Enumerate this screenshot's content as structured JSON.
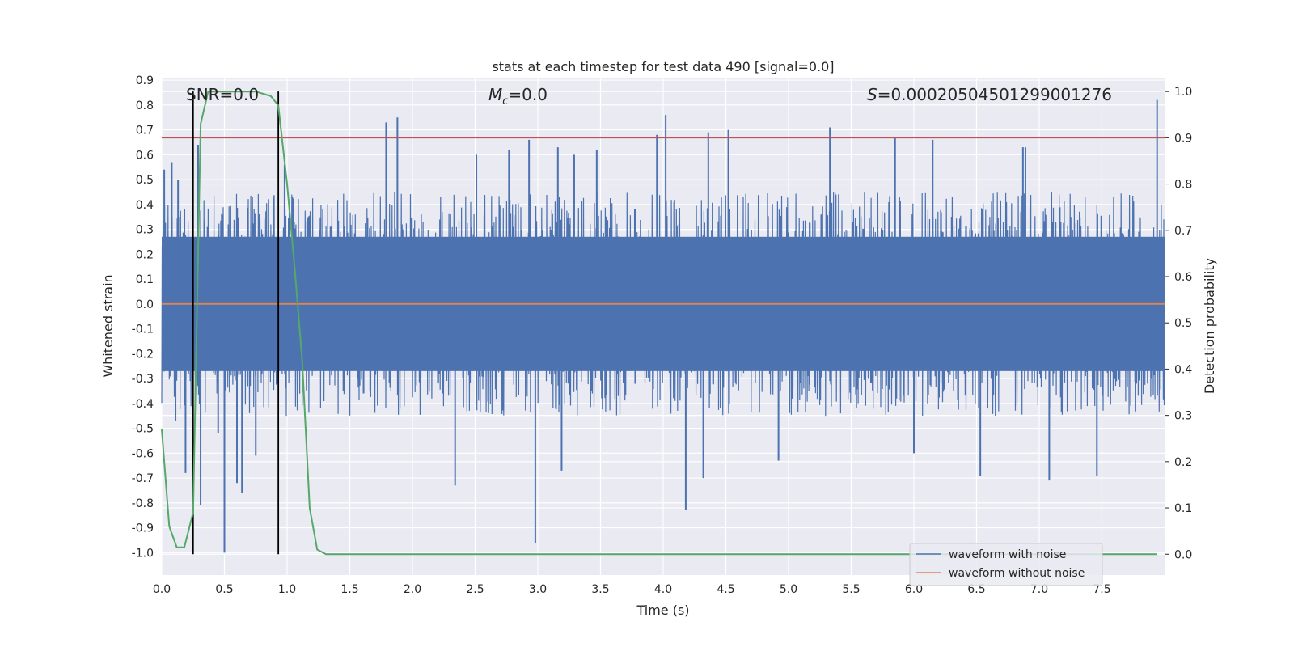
{
  "chart_data": {
    "type": "line",
    "title": "stats at each timestep for test data 490 [signal=0.0]",
    "xlabel": "Time (s)",
    "ylabel": "Whitened strain",
    "ylabel_right": "Detection probability",
    "xlim": [
      0.0,
      8.0
    ],
    "ylim": [
      -1.09,
      0.91
    ],
    "ylim_right": [
      -0.045,
      1.03
    ],
    "x_ticks": [
      "0.0",
      "0.5",
      "1.0",
      "1.5",
      "2.0",
      "2.5",
      "3.0",
      "3.5",
      "4.0",
      "4.5",
      "5.0",
      "5.5",
      "6.0",
      "6.5",
      "7.0",
      "7.5"
    ],
    "y_ticks": [
      "0.9",
      "0.8",
      "0.7",
      "0.6",
      "0.5",
      "0.4",
      "0.3",
      "0.2",
      "0.1",
      "0.0",
      "-0.1",
      "-0.2",
      "-0.3",
      "-0.4",
      "-0.5",
      "-0.6",
      "-0.7",
      "-0.8",
      "-0.9",
      "-1.0"
    ],
    "y_ticks_right": [
      "1.0",
      "0.9",
      "0.8",
      "0.7",
      "0.6",
      "0.5",
      "0.4",
      "0.3",
      "0.2",
      "0.1",
      "0.0"
    ],
    "grid": true,
    "legend_position": "lower-right",
    "annotations": {
      "snr": "SNR=0.0",
      "mc_symbol": "M",
      "mc_sub": "c",
      "mc_value": "=0.0",
      "s_symbol": "S",
      "s_value": "=0.00020504501299001276"
    },
    "threshold_right": 0.9,
    "vlines_x": [
      0.25,
      0.93
    ],
    "series": [
      {
        "name": "waveform with noise",
        "color": "#4c72b0",
        "axis": "left",
        "envelope": {
          "core_lo": -0.27,
          "core_hi": 0.27,
          "typical_lo": -0.45,
          "typical_hi": 0.45
        },
        "peaks": [
          [
            0.02,
            0.54
          ],
          [
            0.08,
            0.57
          ],
          [
            0.11,
            -0.47
          ],
          [
            0.13,
            0.5
          ],
          [
            0.19,
            -0.68
          ],
          [
            0.29,
            0.64
          ],
          [
            0.31,
            -0.81
          ],
          [
            0.45,
            -0.52
          ],
          [
            0.5,
            -1.0
          ],
          [
            0.6,
            -0.72
          ],
          [
            0.64,
            -0.76
          ],
          [
            0.75,
            -0.61
          ],
          [
            0.98,
            0.56
          ],
          [
            1.61,
            -0.36
          ],
          [
            1.79,
            0.73
          ],
          [
            1.88,
            0.75
          ],
          [
            2.34,
            -0.73
          ],
          [
            2.51,
            0.6
          ],
          [
            2.77,
            0.62
          ],
          [
            2.93,
            0.66
          ],
          [
            2.98,
            -0.96
          ],
          [
            3.16,
            0.63
          ],
          [
            3.19,
            -0.67
          ],
          [
            3.29,
            0.6
          ],
          [
            3.47,
            0.62
          ],
          [
            3.95,
            0.68
          ],
          [
            4.02,
            0.76
          ],
          [
            4.18,
            -0.83
          ],
          [
            4.32,
            -0.7
          ],
          [
            4.36,
            0.69
          ],
          [
            4.52,
            0.7
          ],
          [
            4.92,
            -0.63
          ],
          [
            5.33,
            0.71
          ],
          [
            5.85,
            0.67
          ],
          [
            6.0,
            -0.6
          ],
          [
            6.15,
            0.66
          ],
          [
            6.53,
            -0.69
          ],
          [
            6.87,
            0.63
          ],
          [
            6.89,
            0.63
          ],
          [
            7.08,
            -0.71
          ],
          [
            7.46,
            -0.69
          ],
          [
            7.94,
            0.82
          ]
        ]
      },
      {
        "name": "waveform without noise",
        "color": "#dd8452",
        "axis": "left",
        "x": [
          0.0,
          8.0
        ],
        "values": [
          0.0,
          0.0
        ]
      },
      {
        "color": "#55a868",
        "axis": "right",
        "x": [
          0.0,
          0.06,
          0.12,
          0.18,
          0.25,
          0.31,
          0.37,
          0.43,
          0.5,
          0.56,
          0.62,
          0.68,
          0.75,
          0.81,
          0.87,
          0.93,
          1.0,
          1.06,
          1.12,
          1.18,
          1.24,
          1.31,
          1.37,
          7.94
        ],
        "values": [
          0.27,
          0.06,
          0.015,
          0.015,
          0.09,
          0.93,
          1.0,
          1.0,
          1.0,
          1.0,
          1.0,
          1.0,
          1.0,
          0.995,
          0.99,
          0.97,
          0.8,
          0.62,
          0.42,
          0.1,
          0.01,
          0.0,
          0.0,
          0.0
        ]
      },
      {
        "color": "#c44e52",
        "axis": "right",
        "x": [
          0.0,
          8.0
        ],
        "values": [
          0.9,
          0.9
        ]
      }
    ]
  }
}
